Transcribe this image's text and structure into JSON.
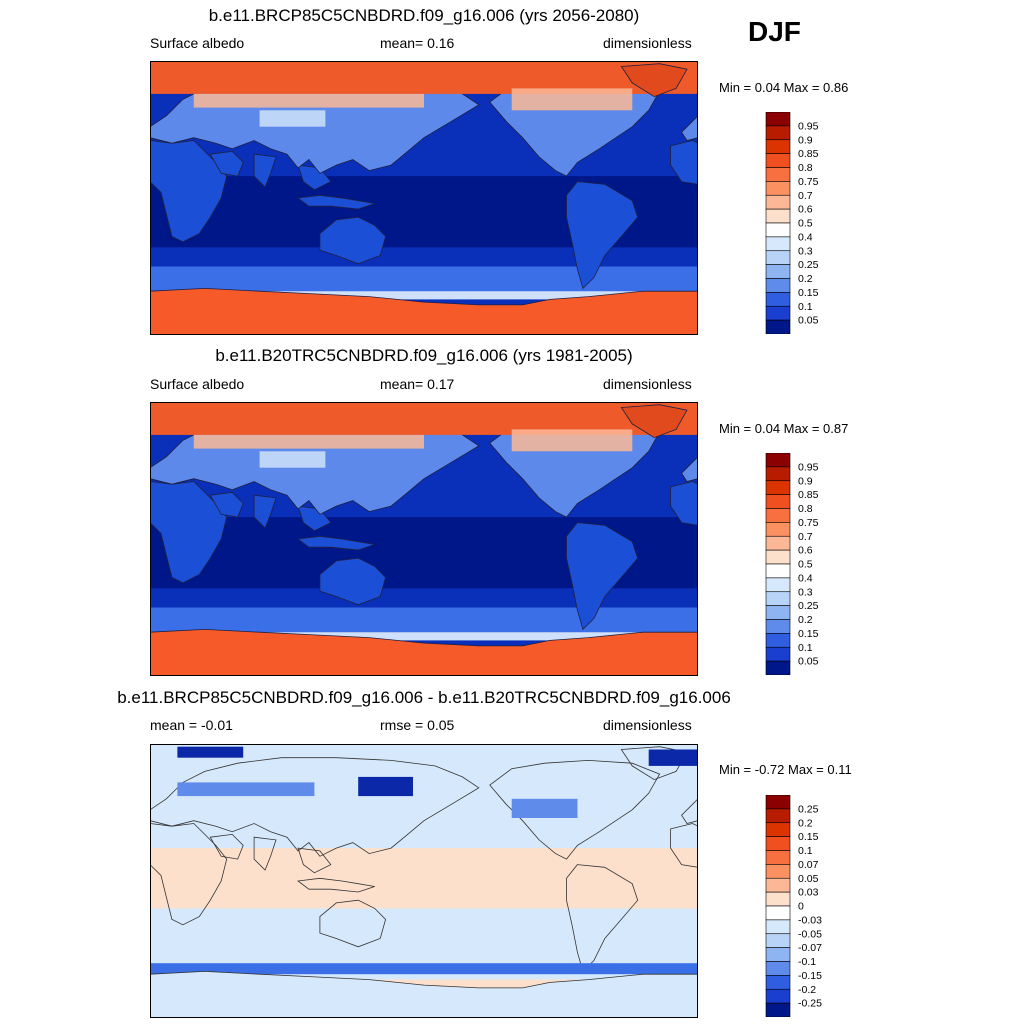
{
  "season": "DJF",
  "colors": {
    "land_blue": "#1a4fd6",
    "ocean_deep": "#00178a",
    "ocean_mid": "#0a2fb8",
    "sea_ice": "#f65a28",
    "arctic_ice": "#ef5a2a",
    "diff_pos": "#fde0cc",
    "diff_neg": "#d6e8fb",
    "diff_strong_neg": "#0a28a8"
  },
  "panels": [
    {
      "title": "b.e11.BRCP85C5CNBDRD.f09_g16.006 (yrs 2056-2080)",
      "left_label": "Surface albedo",
      "center_label": "mean=   0.16",
      "right_label": "dimensionless",
      "minmax": "Min =   0.04 Max =   0.86",
      "type": "absolute",
      "colorbar": {
        "labels": [
          "0.95",
          "0.9",
          "0.85",
          "0.8",
          "0.75",
          "0.7",
          "0.6",
          "0.5",
          "0.4",
          "0.3",
          "0.25",
          "0.2",
          "0.15",
          "0.1",
          "0.05"
        ],
        "colors": [
          "#8b0000",
          "#b81c00",
          "#dc3400",
          "#f05020",
          "#f87040",
          "#fb9060",
          "#fcb896",
          "#fde0cc",
          "#fefefe",
          "#d6e8fb",
          "#b7d3f8",
          "#8fb4f2",
          "#5f8cea",
          "#2f5fe0",
          "#1a3fd0",
          "#00178a"
        ]
      }
    },
    {
      "title": "b.e11.B20TRC5CNBDRD.f09_g16.006 (yrs 1981-2005)",
      "left_label": "Surface albedo",
      "center_label": "mean=   0.17",
      "right_label": "dimensionless",
      "minmax": "Min =   0.04 Max =   0.87",
      "type": "absolute",
      "colorbar": {
        "labels": [
          "0.95",
          "0.9",
          "0.85",
          "0.8",
          "0.75",
          "0.7",
          "0.6",
          "0.5",
          "0.4",
          "0.3",
          "0.25",
          "0.2",
          "0.15",
          "0.1",
          "0.05"
        ],
        "colors": [
          "#8b0000",
          "#b81c00",
          "#dc3400",
          "#f05020",
          "#f87040",
          "#fb9060",
          "#fcb896",
          "#fde0cc",
          "#fefefe",
          "#d6e8fb",
          "#b7d3f8",
          "#8fb4f2",
          "#5f8cea",
          "#2f5fe0",
          "#1a3fd0",
          "#00178a"
        ]
      }
    },
    {
      "title": "b.e11.BRCP85C5CNBDRD.f09_g16.006 - b.e11.B20TRC5CNBDRD.f09_g16.006",
      "left_label": "mean =  -0.01",
      "center_label": "rmse =  0.05",
      "right_label": "dimensionless",
      "minmax": "Min =  -0.72 Max =   0.11",
      "type": "difference",
      "colorbar": {
        "labels": [
          "0.25",
          "0.2",
          "0.15",
          "0.1",
          "0.07",
          "0.05",
          "0.03",
          "0",
          "-0.03",
          "-0.05",
          "-0.07",
          "-0.1",
          "-0.15",
          "-0.2",
          "-0.25"
        ],
        "colors": [
          "#8b0000",
          "#b81c00",
          "#dc3400",
          "#f05020",
          "#f87040",
          "#fb9060",
          "#fcb896",
          "#fde0cc",
          "#fefefe",
          "#d6e8fb",
          "#b7d3f8",
          "#8fb4f2",
          "#5f8cea",
          "#2f5fe0",
          "#1a3fd0",
          "#00178a"
        ]
      }
    }
  ]
}
